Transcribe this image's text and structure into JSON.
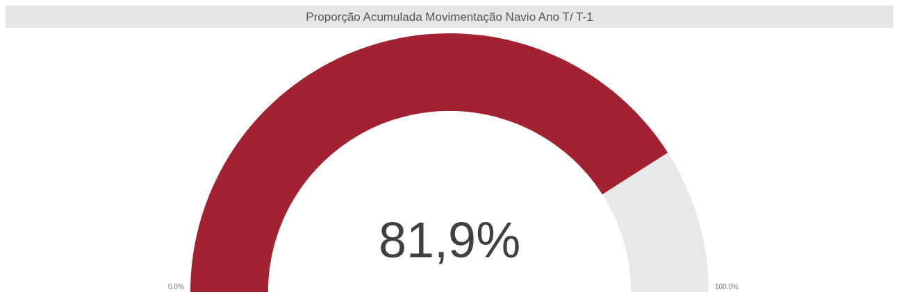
{
  "chart_data": {
    "type": "donut",
    "title": "Proporção Acumulada Movimentação Navio Ano T/ T-1",
    "categories": [
      null,
      null
    ],
    "values": [
      81.9,
      18.1
    ],
    "colors": [
      "#a32231",
      "#e8e8e8"
    ],
    "annotations": [
      "81,9%",
      "0.0%",
      "100.0%"
    ]
  }
}
